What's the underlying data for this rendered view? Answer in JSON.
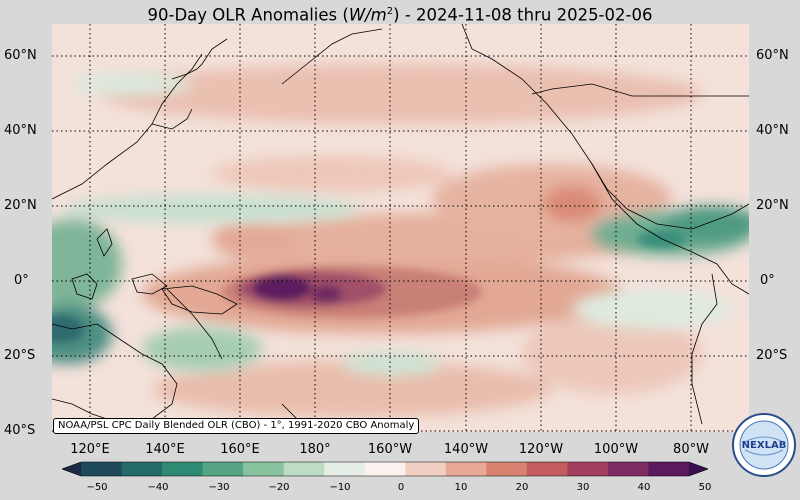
{
  "title": {
    "prefix": "90-Day OLR Anomalies (",
    "unit_main": "W/m",
    "unit_sup": "2",
    "suffix": ") - 2024-11-08 thru 2025-02-06"
  },
  "credit": "NOAA/PSL CPC Daily Blended OLR (CBO) - 1°, 1991-2020 CBO Anomaly",
  "lat_labels": [
    "60°N",
    "40°N",
    "20°N",
    "0°",
    "20°S",
    "40°S"
  ],
  "lon_labels": [
    "120°E",
    "140°E",
    "160°E",
    "180°",
    "160°W",
    "140°W",
    "120°W",
    "100°W",
    "80°W"
  ],
  "colorbar": {
    "ticks": [
      "−50",
      "−40",
      "−30",
      "−20",
      "−10",
      "0",
      "10",
      "20",
      "30",
      "40",
      "50"
    ],
    "colors": [
      "#1e2a45",
      "#1f4a5c",
      "#246b6a",
      "#2f8a74",
      "#55a584",
      "#89c29f",
      "#bcdcc3",
      "#e4eee6",
      "#fbf2ef",
      "#f1cfc2",
      "#e7a994",
      "#d9826f",
      "#c25c5e",
      "#a33f5e",
      "#7e2a63",
      "#5a1a5c",
      "#3b0f4f"
    ]
  },
  "logo_text": "NEXLAB",
  "colors": {
    "positive": "#c96a5e",
    "strong_positive": "#4a1a55",
    "negative": "#2f8a74",
    "land": "#000000"
  }
}
